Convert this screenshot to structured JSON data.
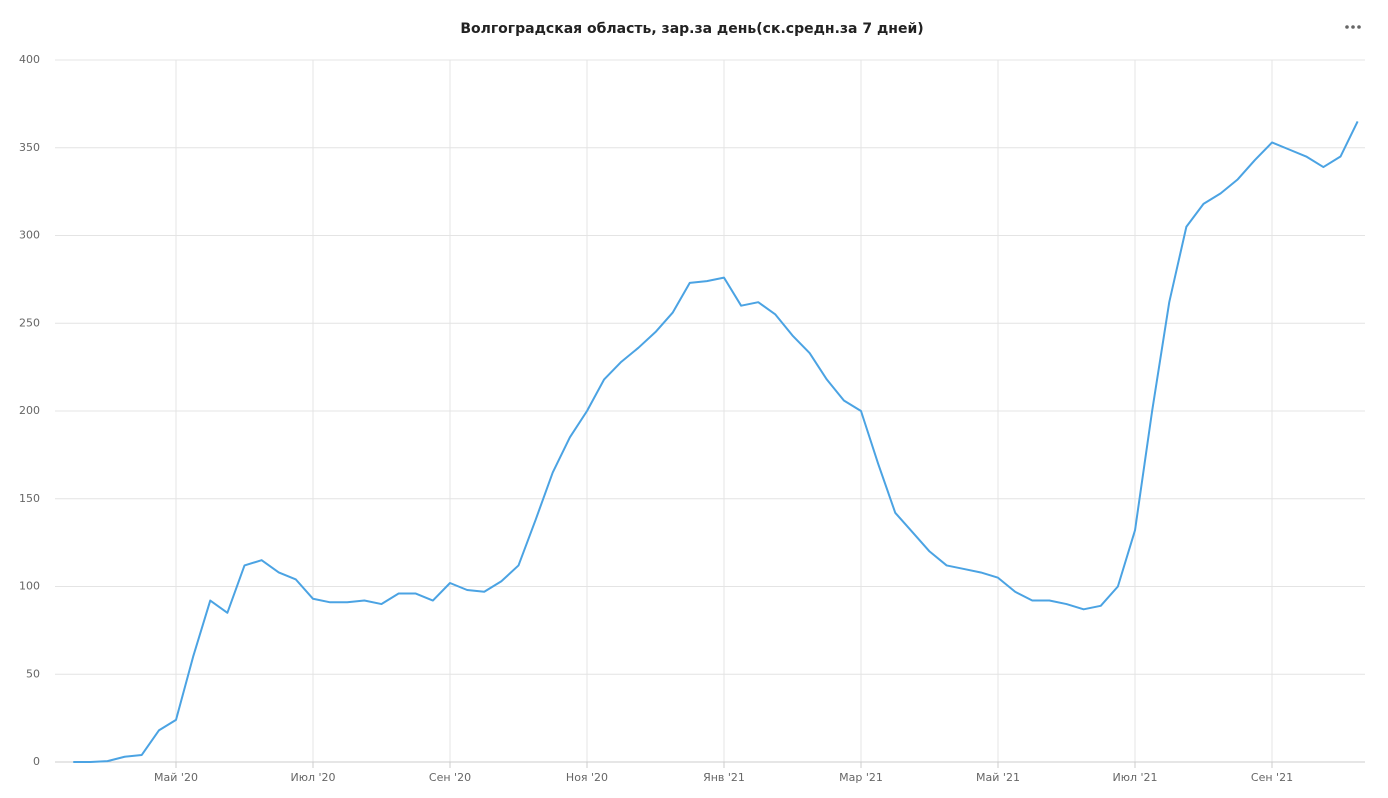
{
  "chart_data": {
    "type": "line",
    "title": "Волгоградская область, зар.за день(ск.средн.за 7 дней)",
    "categories": [
      null,
      null,
      null,
      null,
      null,
      null,
      "Май '20",
      null,
      null,
      null,
      null,
      null,
      null,
      null,
      "Июл '20",
      null,
      null,
      null,
      null,
      null,
      null,
      null,
      "Сен '20",
      null,
      null,
      null,
      null,
      null,
      null,
      null,
      "Ноя '20",
      null,
      null,
      null,
      null,
      null,
      null,
      null,
      "Янв '21",
      null,
      null,
      null,
      null,
      null,
      null,
      null,
      "Мар '21",
      null,
      null,
      null,
      null,
      null,
      null,
      null,
      "Май '21",
      null,
      null,
      null,
      null,
      null,
      null,
      null,
      "Июл '21",
      null,
      null,
      null,
      null,
      null,
      null,
      null,
      "Сен '21",
      null,
      null,
      null,
      null,
      null
    ],
    "series": [
      {
        "color": "#4ba3e3",
        "values": [
          0,
          0,
          0.5,
          3,
          4,
          18,
          24,
          60,
          92,
          85,
          112,
          115,
          108,
          104,
          93,
          91,
          91,
          92,
          90,
          96,
          96,
          92,
          102,
          98,
          97,
          103,
          112,
          138,
          165,
          185,
          200,
          218,
          228,
          236,
          245,
          256,
          273,
          274,
          276,
          260,
          262,
          255,
          243,
          233,
          218,
          206,
          200,
          170,
          142,
          131,
          120,
          112,
          110,
          108,
          105,
          97,
          92,
          92,
          90,
          87,
          89,
          100,
          132,
          200,
          262,
          305,
          318,
          324,
          332,
          343,
          353,
          349,
          345,
          339,
          345,
          365
        ]
      }
    ],
    "ylim": [
      0,
      400
    ],
    "yticks": [
      0,
      50,
      100,
      150,
      200,
      250,
      300,
      350,
      400
    ],
    "grid": true
  }
}
